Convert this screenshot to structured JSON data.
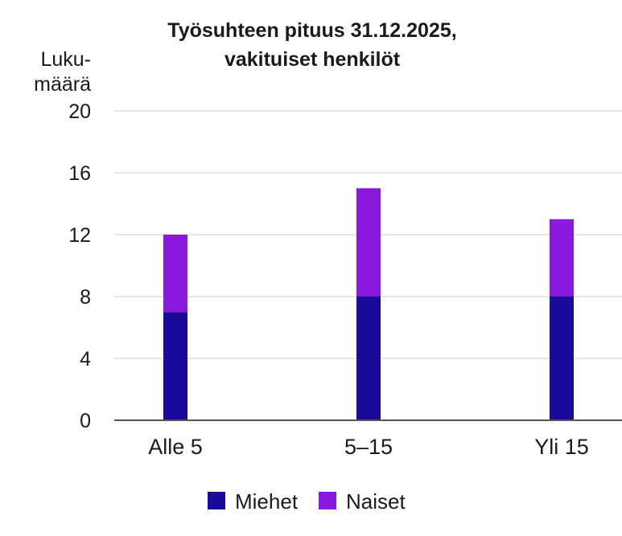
{
  "chart_data": {
    "type": "bar",
    "stacked": true,
    "title_lines": [
      "Työsuhteen pituus 31.12.2025,",
      "vakituiset henkilöt"
    ],
    "ylabel_lines": [
      "Luku-",
      "määrä"
    ],
    "xlabel": "",
    "categories": [
      "Alle 5",
      "5–15",
      "Yli 15"
    ],
    "series": [
      {
        "name": "Miehet",
        "color": "#1a0a9a",
        "values": [
          7,
          8,
          8
        ]
      },
      {
        "name": "Naiset",
        "color": "#8a1adb",
        "values": [
          5,
          7,
          5
        ]
      }
    ],
    "ylim": [
      0,
      20
    ],
    "yticks": [
      0,
      4,
      8,
      12,
      16,
      20
    ],
    "grid": true,
    "legend_position": "bottom-center"
  }
}
